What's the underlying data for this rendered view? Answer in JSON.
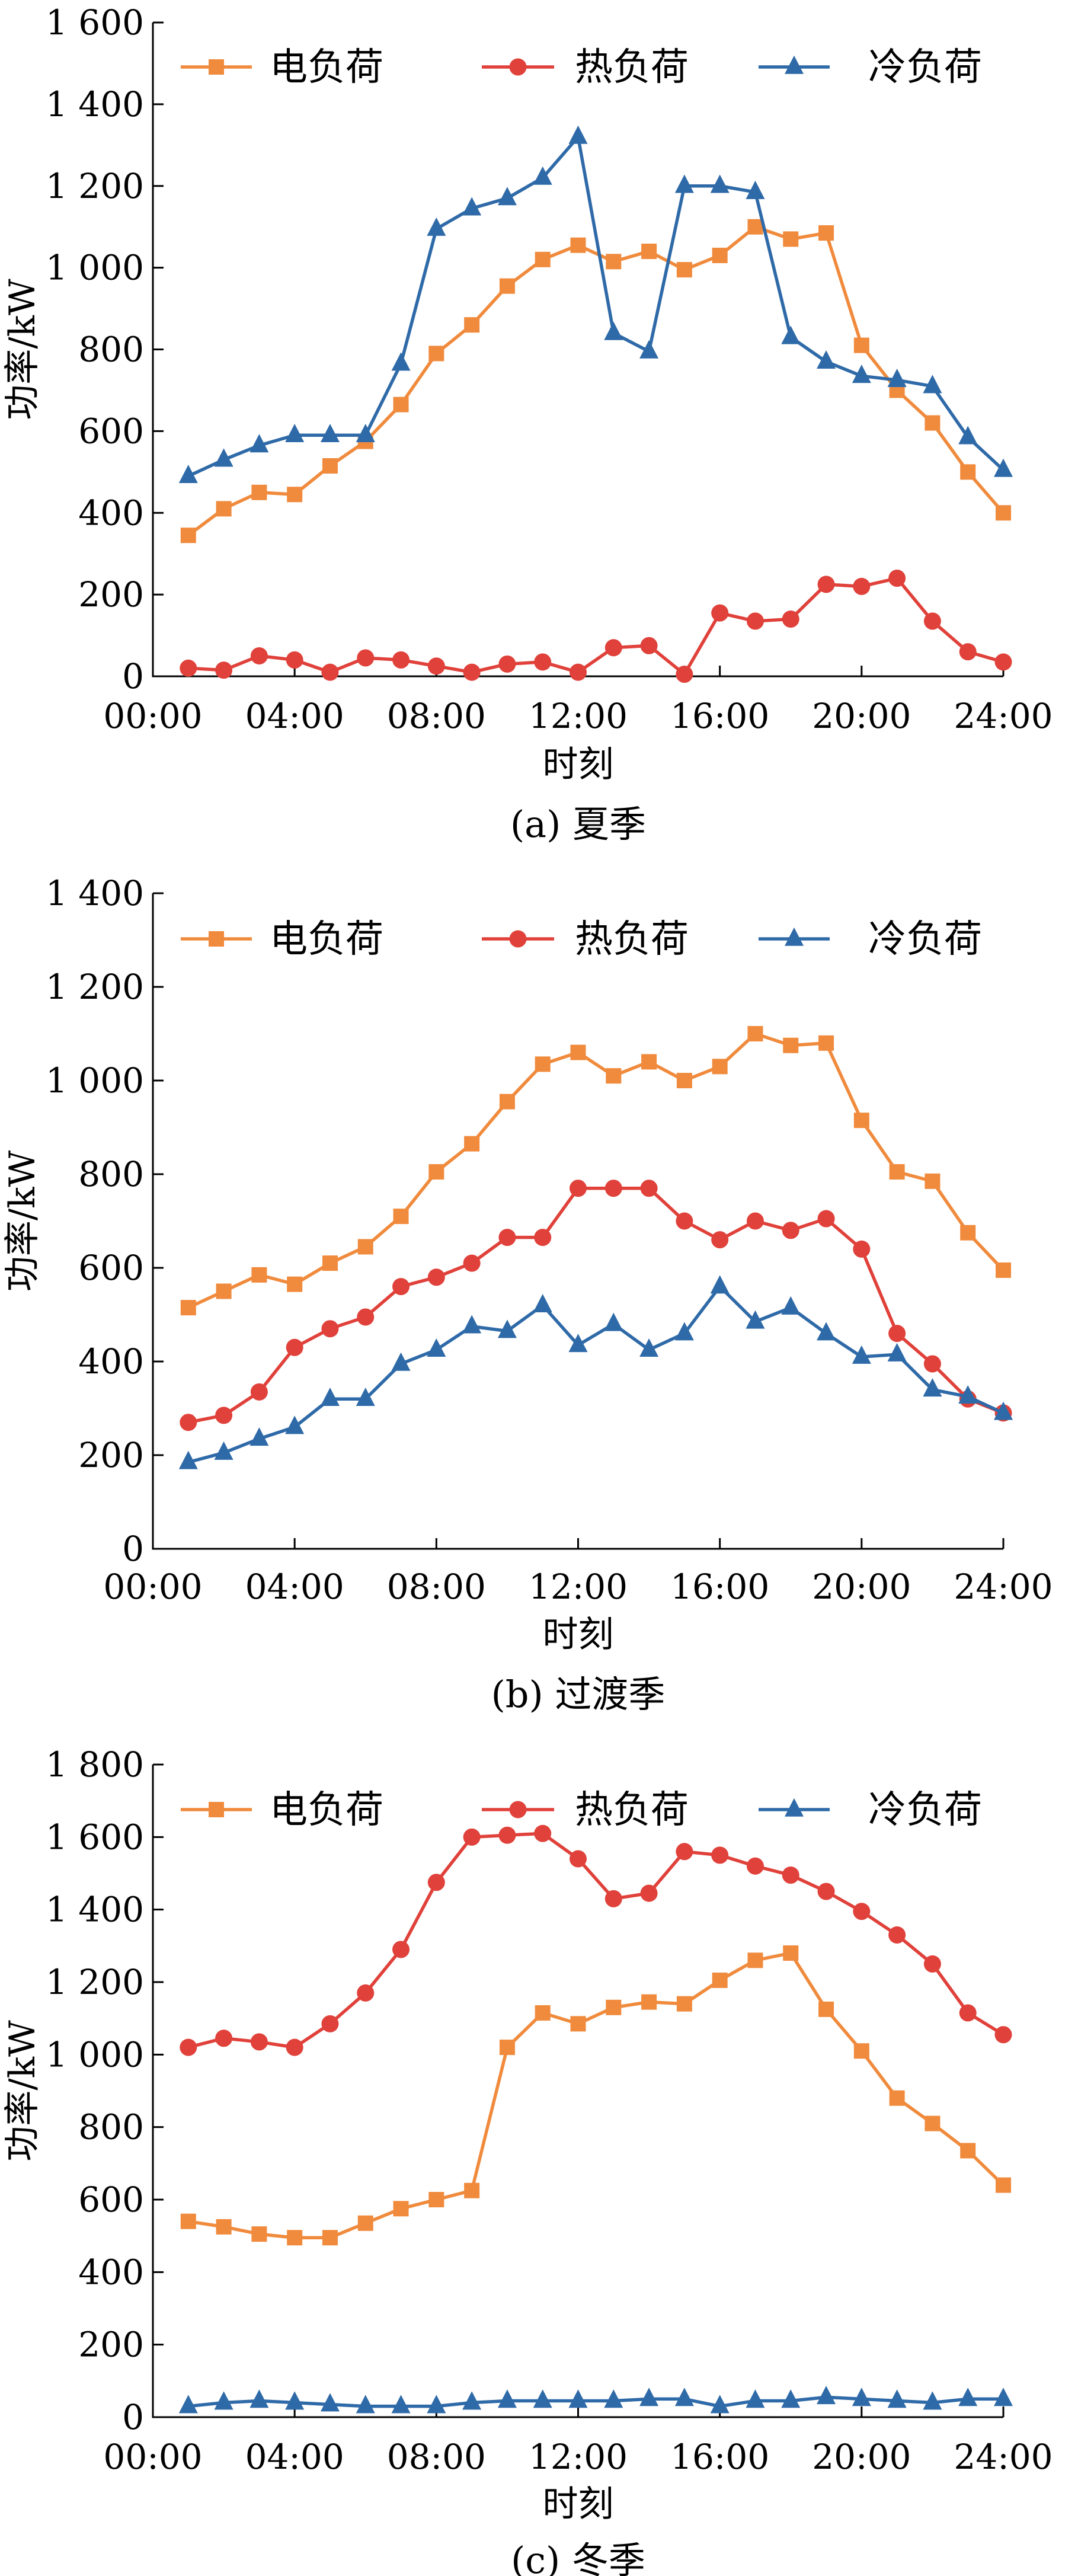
{
  "colors": {
    "electric": "#F08A3C",
    "heat": "#E0413A",
    "cold": "#2F6AA8",
    "axis": "#000000"
  },
  "shared": {
    "xlabel": "时刻",
    "ylabel": "功率/kW",
    "xticks": [
      "00:00",
      "04:00",
      "08:00",
      "12:00",
      "16:00",
      "20:00",
      "24:00"
    ],
    "legend_position": "top",
    "x_unit": "hour of day"
  },
  "chart_data": [
    {
      "type": "line",
      "caption": "(a) 夏季",
      "xlim": [
        0,
        24
      ],
      "ylim": [
        0,
        1600
      ],
      "yticks": [
        "0",
        "200",
        "400",
        "600",
        "800",
        "1 000",
        "1 200",
        "1 400",
        "1 600"
      ],
      "x": [
        1,
        2,
        3,
        4,
        5,
        6,
        7,
        8,
        9,
        10,
        11,
        12,
        13,
        14,
        15,
        16,
        17,
        18,
        19,
        20,
        21,
        22,
        23,
        24
      ],
      "series": [
        {
          "name": "电负荷",
          "marker": "square",
          "color": "#F08A3C",
          "values": [
            345,
            410,
            450,
            445,
            515,
            575,
            665,
            790,
            860,
            955,
            1020,
            1055,
            1015,
            1040,
            995,
            1030,
            1100,
            1070,
            1085,
            810,
            700,
            620,
            500,
            400
          ]
        },
        {
          "name": "热负荷",
          "marker": "circle",
          "color": "#E0413A",
          "values": [
            20,
            15,
            50,
            40,
            10,
            45,
            40,
            25,
            10,
            30,
            35,
            10,
            70,
            75,
            5,
            155,
            135,
            140,
            225,
            220,
            240,
            135,
            60,
            35
          ]
        },
        {
          "name": "冷负荷",
          "marker": "triangle",
          "color": "#2F6AA8",
          "values": [
            490,
            530,
            565,
            590,
            590,
            590,
            765,
            1095,
            1145,
            1170,
            1220,
            1320,
            840,
            795,
            1200,
            1200,
            1185,
            830,
            770,
            735,
            725,
            710,
            585,
            505
          ]
        }
      ]
    },
    {
      "type": "line",
      "caption": "(b) 过渡季",
      "xlim": [
        0,
        24
      ],
      "ylim": [
        0,
        1400
      ],
      "yticks": [
        "0",
        "200",
        "400",
        "600",
        "800",
        "1 000",
        "1 200",
        "1 400"
      ],
      "x": [
        1,
        2,
        3,
        4,
        5,
        6,
        7,
        8,
        9,
        10,
        11,
        12,
        13,
        14,
        15,
        16,
        17,
        18,
        19,
        20,
        21,
        22,
        23,
        24
      ],
      "series": [
        {
          "name": "电负荷",
          "marker": "square",
          "color": "#F08A3C",
          "values": [
            515,
            550,
            585,
            565,
            610,
            645,
            710,
            805,
            865,
            955,
            1035,
            1060,
            1010,
            1040,
            1000,
            1030,
            1100,
            1075,
            1080,
            915,
            805,
            785,
            675,
            595
          ]
        },
        {
          "name": "热负荷",
          "marker": "circle",
          "color": "#E0413A",
          "values": [
            270,
            285,
            335,
            430,
            470,
            495,
            560,
            580,
            610,
            665,
            665,
            770,
            770,
            770,
            700,
            660,
            700,
            680,
            705,
            640,
            460,
            395,
            320,
            290
          ]
        },
        {
          "name": "冷负荷",
          "marker": "triangle",
          "color": "#2F6AA8",
          "values": [
            185,
            205,
            235,
            260,
            320,
            320,
            395,
            425,
            475,
            465,
            520,
            435,
            480,
            425,
            460,
            560,
            485,
            515,
            460,
            410,
            415,
            340,
            325,
            290
          ]
        }
      ]
    },
    {
      "type": "line",
      "caption": "(c) 冬季",
      "xlim": [
        0,
        24
      ],
      "ylim": [
        0,
        1800
      ],
      "yticks": [
        "0",
        "200",
        "400",
        "600",
        "800",
        "1 000",
        "1 200",
        "1 400",
        "1 600",
        "1 800"
      ],
      "x": [
        1,
        2,
        3,
        4,
        5,
        6,
        7,
        8,
        9,
        10,
        11,
        12,
        13,
        14,
        15,
        16,
        17,
        18,
        19,
        20,
        21,
        22,
        23,
        24
      ],
      "series": [
        {
          "name": "电负荷",
          "marker": "square",
          "color": "#F08A3C",
          "values": [
            540,
            525,
            505,
            495,
            495,
            535,
            575,
            600,
            625,
            1020,
            1115,
            1085,
            1130,
            1145,
            1140,
            1205,
            1260,
            1280,
            1125,
            1010,
            880,
            810,
            735,
            640
          ]
        },
        {
          "name": "热负荷",
          "marker": "circle",
          "color": "#E0413A",
          "values": [
            1020,
            1045,
            1035,
            1020,
            1085,
            1170,
            1290,
            1475,
            1600,
            1605,
            1610,
            1540,
            1430,
            1445,
            1560,
            1550,
            1520,
            1495,
            1450,
            1395,
            1330,
            1250,
            1115,
            1055
          ]
        },
        {
          "name": "冷负荷",
          "marker": "triangle",
          "color": "#2F6AA8",
          "values": [
            30,
            40,
            45,
            40,
            35,
            30,
            30,
            30,
            40,
            45,
            45,
            45,
            45,
            50,
            50,
            30,
            45,
            45,
            55,
            50,
            45,
            40,
            50,
            50
          ]
        }
      ]
    }
  ]
}
